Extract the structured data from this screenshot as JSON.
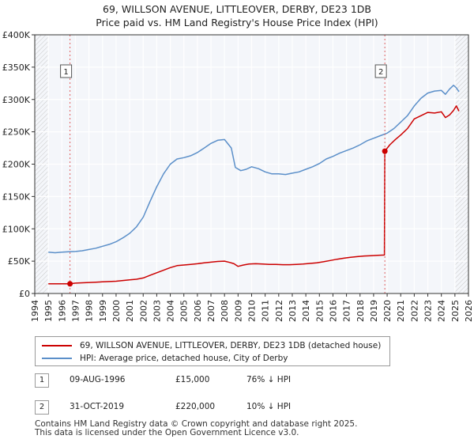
{
  "title_line1": "69, WILLSON AVENUE, LITTLEOVER, DERBY, DE23 1DB",
  "title_line2": "Price paid vs. HM Land Registry's House Price Index (HPI)",
  "chart_data": {
    "type": "line",
    "y_tick_labels": [
      "£0",
      "£50K",
      "£100K",
      "£150K",
      "£200K",
      "£250K",
      "£300K",
      "£350K",
      "£400K"
    ],
    "ylim": [
      0,
      400000
    ],
    "xlim": [
      1994,
      2026
    ],
    "x_tick_labels": [
      "1994",
      "1995",
      "1996",
      "1997",
      "1998",
      "1999",
      "2000",
      "2001",
      "2002",
      "2003",
      "2004",
      "2005",
      "2006",
      "2007",
      "2008",
      "2009",
      "2010",
      "2011",
      "2012",
      "2013",
      "2014",
      "2015",
      "2016",
      "2017",
      "2018",
      "2019",
      "2020",
      "2021",
      "2022",
      "2023",
      "2024",
      "2025",
      "2026"
    ],
    "series": [
      {
        "name": "69, WILLSON AVENUE, LITTLEOVER, DERBY, DE23 1DB (detached house)",
        "color": "#cc0000",
        "x": [
          1995.0,
          1995.5,
          1996.0,
          1996.6,
          1997.0,
          1997.5,
          1998.0,
          1998.5,
          1999.0,
          1999.5,
          2000.0,
          2000.5,
          2001.0,
          2001.5,
          2002.0,
          2002.5,
          2003.0,
          2003.5,
          2004.0,
          2004.5,
          2005.0,
          2005.5,
          2006.0,
          2006.5,
          2007.0,
          2007.5,
          2008.0,
          2008.4,
          2008.7,
          2009.0,
          2009.4,
          2009.8,
          2010.3,
          2010.8,
          2011.3,
          2011.8,
          2012.3,
          2012.8,
          2013.3,
          2013.8,
          2014.3,
          2014.8,
          2015.3,
          2015.8,
          2016.3,
          2016.8,
          2017.3,
          2017.8,
          2018.3,
          2018.8,
          2019.3,
          2019.8,
          2019.83,
          2020.2,
          2020.6,
          2021.0,
          2021.5,
          2022.0,
          2022.5,
          2023.0,
          2023.5,
          2024.0,
          2024.3,
          2024.6,
          2024.9,
          2025.1,
          2025.3
        ],
        "values": [
          15000,
          15000,
          15000,
          15000,
          16000,
          16500,
          17000,
          17500,
          18000,
          18500,
          19000,
          20000,
          21000,
          22000,
          24000,
          28000,
          32000,
          36000,
          40000,
          43000,
          44000,
          45000,
          46000,
          47500,
          48500,
          49500,
          50000,
          48000,
          46000,
          42000,
          44000,
          45500,
          46000,
          45500,
          45000,
          45000,
          44500,
          44500,
          45000,
          45500,
          46500,
          47500,
          49000,
          51000,
          53000,
          54500,
          56000,
          57000,
          58000,
          58500,
          59000,
          59500,
          220000,
          230000,
          238000,
          245000,
          255000,
          270000,
          275000,
          280000,
          279000,
          281000,
          272000,
          276000,
          283000,
          290000,
          282000
        ]
      },
      {
        "name": "HPI: Average price, detached house, City of Derby",
        "color": "#5b8fc9",
        "x": [
          1995.0,
          1995.5,
          1996.0,
          1996.5,
          1997.0,
          1997.5,
          1998.0,
          1998.5,
          1999.0,
          1999.5,
          2000.0,
          2000.5,
          2001.0,
          2001.5,
          2002.0,
          2002.5,
          2003.0,
          2003.5,
          2004.0,
          2004.5,
          2005.0,
          2005.5,
          2006.0,
          2006.5,
          2007.0,
          2007.5,
          2008.0,
          2008.5,
          2008.8,
          2009.2,
          2009.6,
          2010.0,
          2010.5,
          2011.0,
          2011.5,
          2012.0,
          2012.5,
          2013.0,
          2013.5,
          2014.0,
          2014.5,
          2015.0,
          2015.5,
          2016.0,
          2016.5,
          2017.0,
          2017.5,
          2018.0,
          2018.5,
          2019.0,
          2019.5,
          2020.0,
          2020.5,
          2021.0,
          2021.5,
          2022.0,
          2022.5,
          2023.0,
          2023.5,
          2024.0,
          2024.3,
          2024.6,
          2024.9,
          2025.1,
          2025.3
        ],
        "values": [
          64000,
          63000,
          64000,
          64500,
          65000,
          66000,
          68000,
          70000,
          73000,
          76000,
          80000,
          86000,
          93000,
          103000,
          118000,
          142000,
          165000,
          185000,
          200000,
          208000,
          210000,
          213000,
          218000,
          225000,
          232000,
          237000,
          238000,
          225000,
          195000,
          190000,
          192000,
          196000,
          193000,
          188000,
          185000,
          185000,
          184000,
          186000,
          188000,
          192000,
          196000,
          201000,
          208000,
          212000,
          217000,
          221000,
          225000,
          230000,
          236000,
          240000,
          244000,
          248000,
          255000,
          265000,
          275000,
          290000,
          302000,
          310000,
          313000,
          314000,
          308000,
          316000,
          322000,
          318000,
          312000
        ]
      }
    ],
    "sale_markers": [
      {
        "label": "1",
        "x": 1996.6,
        "value": 15000
      },
      {
        "label": "2",
        "x": 2019.83,
        "value": 220000
      }
    ]
  },
  "legend": {
    "property_label": "69, WILLSON AVENUE, LITTLEOVER, DERBY, DE23 1DB (detached house)",
    "hpi_label": "HPI: Average price, detached house, City of Derby"
  },
  "sales": [
    {
      "num": "1",
      "date": "09-AUG-1996",
      "price": "£15,000",
      "hpi": "76% ↓ HPI"
    },
    {
      "num": "2",
      "date": "31-OCT-2019",
      "price": "£220,000",
      "hpi": "10% ↓ HPI"
    }
  ],
  "footer_line1": "Contains HM Land Registry data © Crown copyright and database right 2025.",
  "footer_line2": "This data is licensed under the Open Government Licence v3.0."
}
